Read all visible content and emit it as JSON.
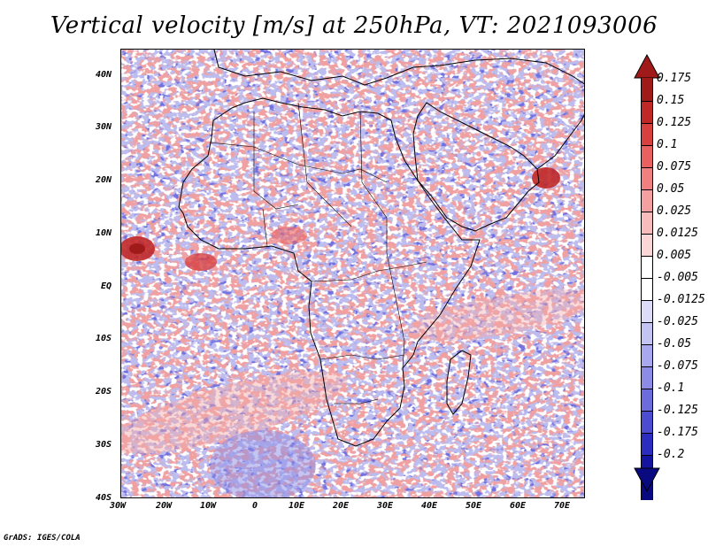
{
  "title": "Vertical velocity [m/s] at 250hPa, VT: 2021093006",
  "footer": "GrADS: IGES/COLA",
  "map": {
    "lon_range": [
      -30,
      75
    ],
    "lat_range": [
      -40,
      45
    ],
    "lon_ticks": [
      "30W",
      "20W",
      "10W",
      "0",
      "10E",
      "20E",
      "30E",
      "40E",
      "50E",
      "60E",
      "70E"
    ],
    "lat_ticks": [
      "40N",
      "30N",
      "20N",
      "10N",
      "EQ",
      "10S",
      "20S",
      "30S",
      "40S"
    ],
    "features": [
      "Africa coastline and borders",
      "Arabian Peninsula",
      "Madagascar",
      "Tropical cyclone near 8N 28W",
      "Convection near 18N 63E"
    ]
  },
  "colorbar": {
    "labels": [
      "0.175",
      "0.15",
      "0.125",
      "0.1",
      "0.075",
      "0.05",
      "0.025",
      "0.0125",
      "0.005",
      "-0.005",
      "-0.0125",
      "-0.025",
      "-0.05",
      "-0.075",
      "-0.1",
      "-0.125",
      "-0.175",
      "-0.2"
    ],
    "colors": [
      "#a01a1a",
      "#c02828",
      "#d84040",
      "#e86060",
      "#f08080",
      "#f4a0a0",
      "#f8bcbc",
      "#fbd6d6",
      "#ffffff",
      "#ffffff",
      "#dcdcf8",
      "#c4c4f2",
      "#a8a8ee",
      "#8c8ce6",
      "#6c6cdc",
      "#4c4cd0",
      "#2c2cc0",
      "#1414a0",
      "#0a0a80"
    ]
  },
  "colors": {
    "background": "#ffffff",
    "land_lines": "#000000"
  }
}
